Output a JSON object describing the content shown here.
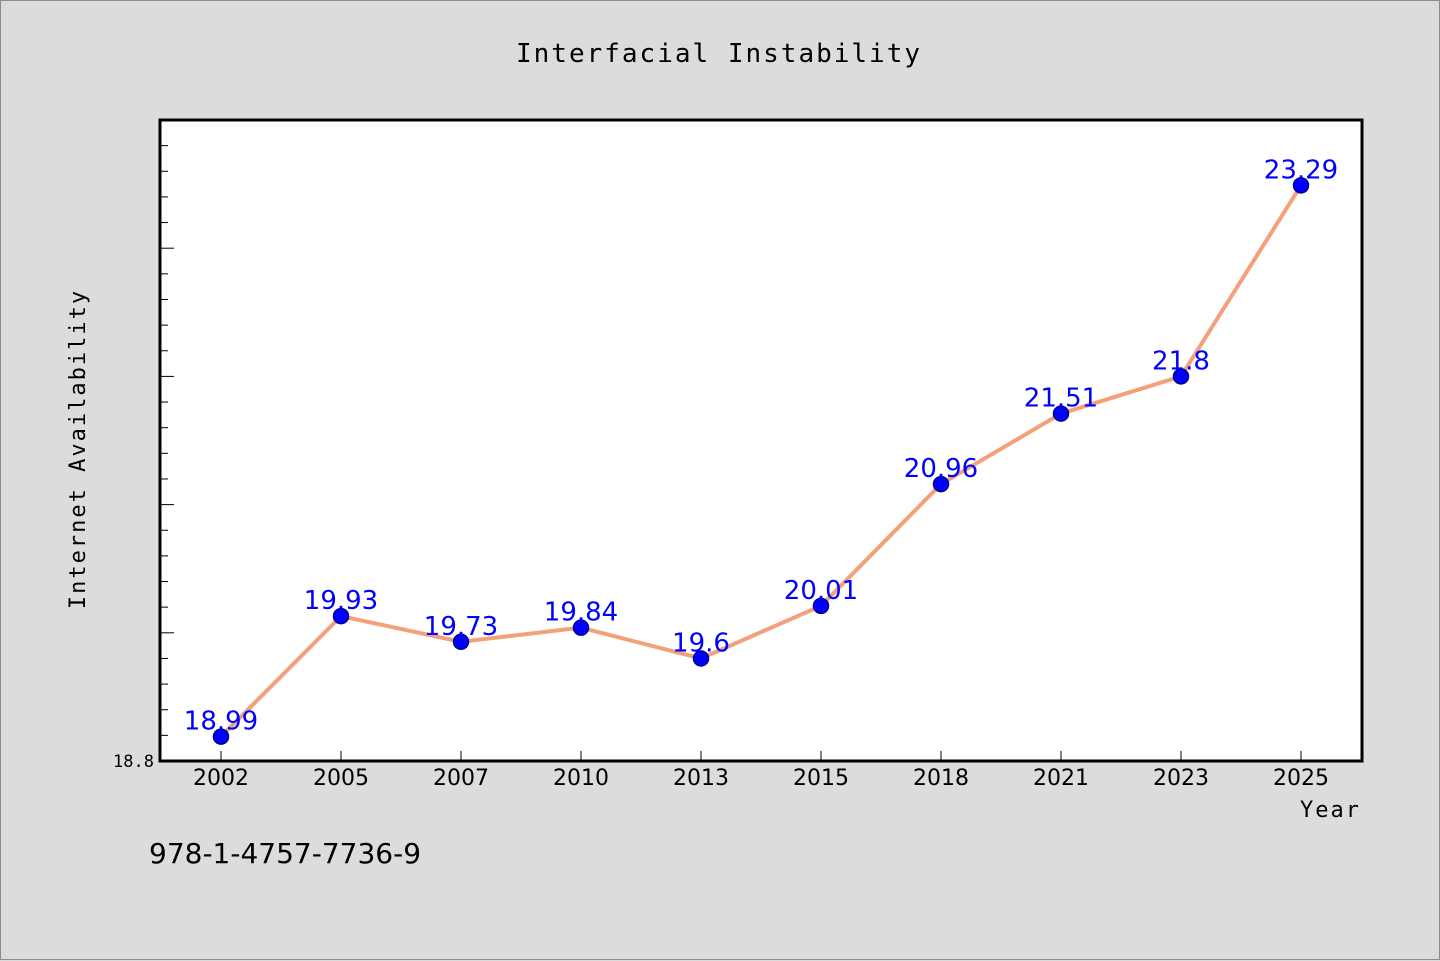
{
  "chart_data": {
    "type": "line",
    "title": "Interfacial Instability",
    "xlabel": "Year",
    "ylabel": "Internet Availability",
    "categories": [
      "2002",
      "2005",
      "2007",
      "2010",
      "2013",
      "2015",
      "2018",
      "2021",
      "2023",
      "2025"
    ],
    "series": [
      {
        "values": [
          18.99,
          19.93,
          19.73,
          19.84,
          19.6,
          20.01,
          20.96,
          21.51,
          21.8,
          23.29
        ],
        "labels": [
          "18.99",
          "19.93",
          "19.73",
          "19.84",
          "19.6",
          "20.01",
          "20.96",
          "21.51",
          "21.8",
          "23.29"
        ]
      }
    ],
    "ylim": [
      18.8,
      23.8
    ],
    "yticks_labeled": [
      "18.8"
    ],
    "grid": false,
    "legend": "none",
    "colors": {
      "line": "#f4a07a",
      "marker": "#0000ff",
      "marker_edge": "#00008b",
      "data_label": "#0000ff",
      "background": "#dcdcdc",
      "plot_background": "#ffffff"
    }
  },
  "footnote": "978-1-4757-7736-9"
}
